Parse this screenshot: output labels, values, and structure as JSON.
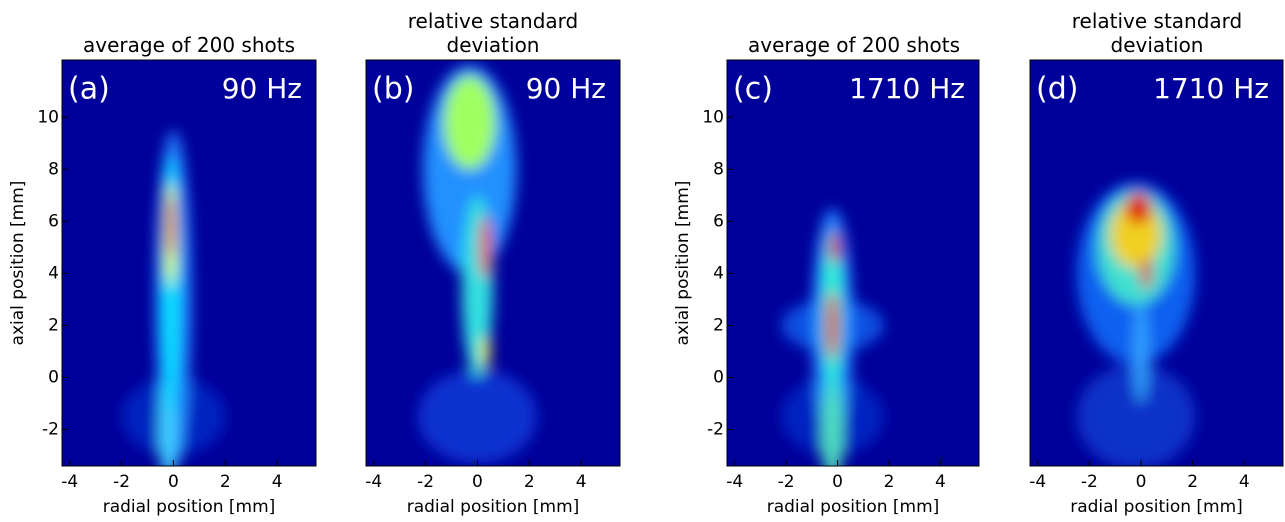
{
  "chart_data": [
    {
      "type": "image",
      "title": "average of 200 shots",
      "panel_label": "(a)",
      "frequency": "90 Hz",
      "xlabel": "radial position [mm]",
      "ylabel": "axial position [mm]",
      "xlim": [
        -4.3,
        5.5
      ],
      "ylim": [
        -3.4,
        12.2
      ],
      "xticks": [
        -4,
        -2,
        0,
        2,
        4
      ],
      "yticks": [
        -2,
        0,
        2,
        4,
        6,
        8,
        10
      ]
    },
    {
      "type": "image",
      "title": "relative standard deviation",
      "panel_label": "(b)",
      "frequency": "90 Hz",
      "xlabel": "radial position [mm]",
      "xlim": [
        -4.3,
        5.5
      ],
      "ylim": [
        -3.4,
        12.2
      ],
      "xticks": [
        -4,
        -2,
        0,
        2,
        4
      ]
    },
    {
      "type": "image",
      "title": "average of 200 shots",
      "panel_label": "(c)",
      "frequency": "1710 Hz",
      "xlabel": "radial position [mm]",
      "ylabel": "axial position [mm]",
      "xlim": [
        -4.3,
        5.5
      ],
      "ylim": [
        -3.4,
        12.2
      ],
      "xticks": [
        -4,
        -2,
        0,
        2,
        4
      ],
      "yticks": [
        -2,
        0,
        2,
        4,
        6,
        8,
        10
      ]
    },
    {
      "type": "image",
      "title": "relative standard deviation",
      "panel_label": "(d)",
      "frequency": "1710 Hz",
      "xlabel": "radial position [mm]",
      "xlim": [
        -4.3,
        5.5
      ],
      "ylim": [
        -3.4,
        12.2
      ],
      "xticks": [
        -4,
        -2,
        0,
        2,
        4
      ]
    }
  ]
}
